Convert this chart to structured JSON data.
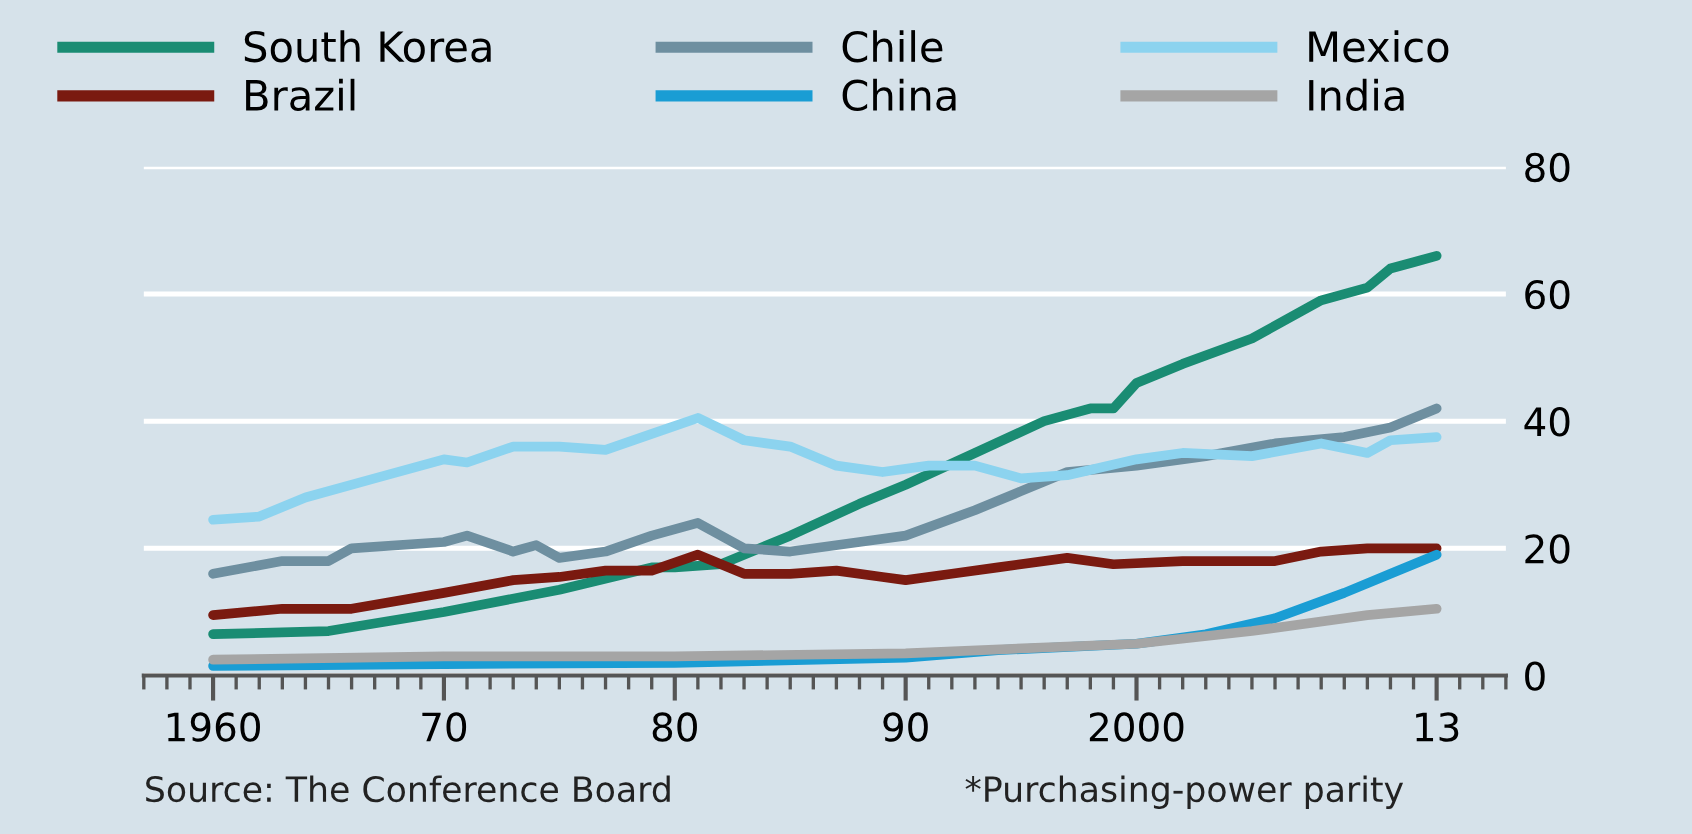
{
  "chart_data": {
    "type": "line",
    "legend": "top",
    "grid": "y",
    "xlim": [
      1957,
      2016
    ],
    "ylim": [
      0,
      80
    ],
    "xticks": [
      1960,
      {
        "value": 1970,
        "label": "70"
      },
      {
        "value": 1980,
        "label": "80"
      },
      {
        "value": 1990,
        "label": "90"
      },
      2000,
      {
        "value": 2013,
        "label": "13"
      }
    ],
    "yticks": [
      0,
      20,
      40,
      60,
      80
    ],
    "annotations": [
      "Source: The Conference Board",
      "*Purchasing-power parity"
    ],
    "series": [
      {
        "name": "South Korea",
        "color": "#1a8c73",
        "x": [
          1960,
          1965,
          1970,
          1975,
          1979,
          1980,
          1982,
          1985,
          1988,
          1990,
          1993,
          1996,
          1998,
          1999,
          2000,
          2002,
          2005,
          2008,
          2010,
          2011,
          2012,
          2013
        ],
        "values": [
          6.5,
          7,
          10,
          13.5,
          17,
          17,
          17.5,
          22,
          27,
          30,
          35,
          40,
          42,
          42,
          46,
          49,
          53,
          59,
          61,
          64,
          65,
          66
        ]
      },
      {
        "name": "Brazil",
        "color": "#7a1a10",
        "x": [
          1960,
          1963,
          1966,
          1970,
          1973,
          1975,
          1977,
          1979,
          1981,
          1983,
          1985,
          1987,
          1989,
          1990,
          1992,
          1994,
          1997,
          1999,
          2002,
          2006,
          2008,
          2010,
          2013
        ],
        "values": [
          9.5,
          10.5,
          10.5,
          13,
          15,
          15.5,
          16.5,
          16.5,
          19,
          16,
          16,
          16.5,
          15.5,
          15,
          16,
          17,
          18.5,
          17.5,
          18,
          18,
          19.5,
          20,
          20
        ]
      },
      {
        "name": "Chile",
        "color": "#6e8fa0",
        "x": [
          1960,
          1963,
          1965,
          1966,
          1970,
          1971,
          1973,
          1974,
          1975,
          1977,
          1979,
          1981,
          1983,
          1985,
          1988,
          1990,
          1993,
          1995,
          1997,
          2000,
          2003,
          2006,
          2009,
          2011,
          2013
        ],
        "values": [
          16,
          18,
          18,
          20,
          21,
          22,
          19.5,
          20.5,
          18.5,
          19.5,
          22,
          24,
          20,
          19.5,
          21,
          22,
          26,
          29,
          32,
          33,
          34.5,
          36.5,
          37.5,
          39,
          42
        ]
      },
      {
        "name": "China",
        "color": "#1a9dd4",
        "x": [
          1960,
          1970,
          1980,
          1990,
          1994,
          2000,
          2003,
          2006,
          2009,
          2011,
          2013
        ],
        "values": [
          1.5,
          1.8,
          2,
          2.8,
          4,
          5,
          6.5,
          9,
          13,
          16,
          19
        ]
      },
      {
        "name": "Mexico",
        "color": "#8cd3ef",
        "x": [
          1960,
          1962,
          1964,
          1967,
          1970,
          1971,
          1973,
          1975,
          1977,
          1979,
          1981,
          1983,
          1985,
          1987,
          1989,
          1991,
          1993,
          1995,
          1997,
          2000,
          2002,
          2005,
          2008,
          2010,
          2011,
          2013
        ],
        "values": [
          24.5,
          25,
          28,
          31,
          34,
          33.5,
          36,
          36,
          35.5,
          38,
          40.5,
          37,
          36,
          33,
          32,
          33,
          33,
          31,
          31.5,
          34,
          35,
          34.5,
          36.5,
          35,
          37,
          37.5
        ]
      },
      {
        "name": "India",
        "color": "#a5a5a5",
        "x": [
          1960,
          1970,
          1980,
          1990,
          2000,
          2005,
          2010,
          2013
        ],
        "values": [
          2.5,
          3,
          3,
          3.5,
          5,
          7,
          9.5,
          10.5
        ]
      }
    ]
  }
}
